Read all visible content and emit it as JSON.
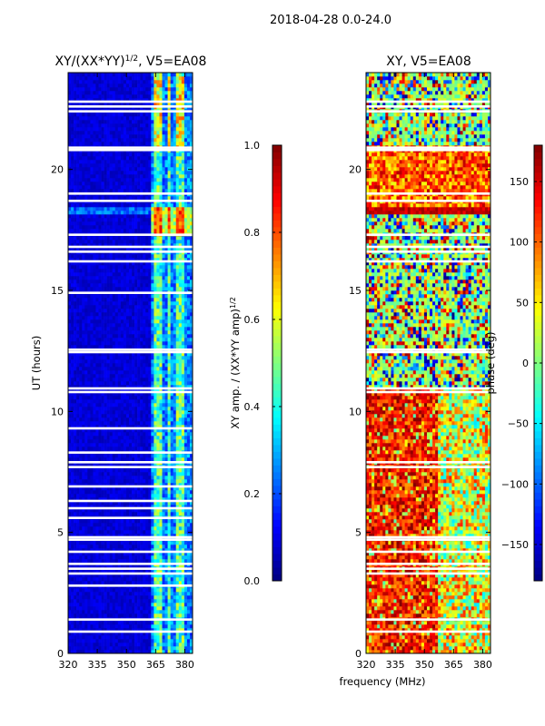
{
  "suptitle": "2018-04-28 0.0-24.0",
  "chart_data": [
    {
      "type": "heatmap",
      "title": "XY/(XX*YY)",
      "title_sup": "1/2",
      "title_suffix": ", V5=EA08",
      "xlabel": "",
      "ylabel": "UT (hours)",
      "xlim": [
        320,
        384
      ],
      "ylim": [
        0,
        24
      ],
      "xticks": [
        320,
        335,
        350,
        365,
        380
      ],
      "yticks": [
        0,
        5,
        10,
        15,
        20
      ],
      "colormap": "jet",
      "colorbar": {
        "label": "XY amp. / (XX*YY amp)",
        "label_sup": "1/2",
        "range": [
          0.0,
          1.0
        ],
        "ticks": [
          "0.0",
          "0.2",
          "0.4",
          "0.6",
          "0.8",
          "1.0"
        ],
        "tick_values": [
          0.0,
          0.2,
          0.4,
          0.6,
          0.8,
          1.0
        ]
      },
      "gaps_hours": [
        0.9,
        1.4,
        2.8,
        3.3,
        3.5,
        3.7,
        4.2,
        4.7,
        4.8,
        5.6,
        6.0,
        6.3,
        6.9,
        7.7,
        7.9,
        8.3,
        9.3,
        10.8,
        10.95,
        12.45,
        12.55,
        14.9,
        16.2,
        16.6,
        16.8,
        17.3,
        18.7,
        19.0,
        20.8,
        20.9,
        22.4,
        22.6,
        22.8
      ]
    },
    {
      "type": "heatmap",
      "title": "XY, V5=EA08",
      "xlabel": "frequency (MHz)",
      "ylabel": "",
      "xlim": [
        320,
        384
      ],
      "ylim": [
        0,
        24
      ],
      "xticks": [
        320,
        335,
        350,
        365,
        380
      ],
      "yticks": [
        0,
        5,
        10,
        15,
        20
      ],
      "colormap": "jet",
      "colorbar": {
        "label": "phase (deg)",
        "range": [
          -180,
          180
        ],
        "ticks": [
          "150",
          "100",
          "50",
          "0",
          "−50",
          "−100",
          "−150"
        ],
        "tick_values": [
          150,
          100,
          50,
          0,
          -50,
          -100,
          -150
        ]
      },
      "gaps_hours": [
        0.9,
        1.4,
        3.3,
        3.5,
        3.7,
        4.2,
        4.7,
        4.8,
        7.7,
        7.9,
        10.8,
        10.95,
        12.45,
        12.55,
        16.2,
        16.6,
        16.8,
        17.3,
        18.7,
        19.0,
        20.8,
        20.9,
        22.4,
        22.6,
        22.8
      ]
    }
  ]
}
